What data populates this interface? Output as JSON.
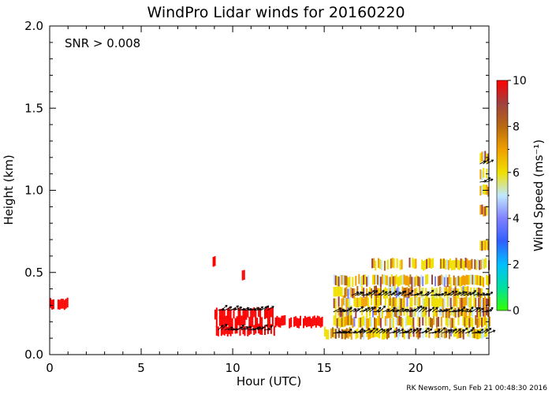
{
  "chart_data": {
    "type": "heatmap",
    "title": "WindPro Lidar winds for 20160220",
    "xlabel": "Hour (UTC)",
    "ylabel": "Height (km)",
    "xlim": [
      0,
      24
    ],
    "ylim": [
      0,
      2.0
    ],
    "xticks": [
      "0",
      "5",
      "10",
      "15",
      "20"
    ],
    "xtick_values": [
      0,
      5,
      10,
      15,
      20
    ],
    "yticks": [
      "0.0",
      "0.5",
      "1.0",
      "1.5",
      "2.0"
    ],
    "ytick_values": [
      0.0,
      0.5,
      1.0,
      1.5,
      2.0
    ],
    "annotation": "SNR > 0.008",
    "colorbar": {
      "label": "Wind Speed (ms⁻¹)",
      "range": [
        0,
        10
      ],
      "ticks": [
        "0",
        "2",
        "4",
        "6",
        "8",
        "10"
      ],
      "tick_values": [
        0,
        2,
        4,
        6,
        8,
        10
      ],
      "colors": [
        "#33ff00",
        "#00e0a0",
        "#00c0ff",
        "#3060ff",
        "#8080ff",
        "#c0e8ff",
        "#f0e000",
        "#f0a000",
        "#b86a10",
        "#a04040",
        "#ff0000"
      ]
    },
    "wind_speed_layers": [
      {
        "hours": [
          0.0,
          1.0
        ],
        "height": 0.31,
        "speed": 10
      },
      {
        "hours": [
          9.0,
          12.3
        ],
        "height": 0.15,
        "speed": 10
      },
      {
        "hours": [
          9.0,
          12.3
        ],
        "height": 0.2,
        "speed": 10
      },
      {
        "hours": [
          9.0,
          12.3
        ],
        "height": 0.25,
        "speed": 10
      },
      {
        "hours": [
          12.3,
          15.0
        ],
        "height": 0.2,
        "speed": 10
      },
      {
        "hours": [
          8.9,
          9.0
        ],
        "height": 0.57,
        "speed": 10
      },
      {
        "hours": [
          10.5,
          10.6
        ],
        "height": 0.48,
        "speed": 10
      },
      {
        "hours": [
          15.0,
          24.0
        ],
        "height": 0.13,
        "speed": 6
      },
      {
        "hours": [
          15.5,
          24.0
        ],
        "height": 0.2,
        "speed": 6
      },
      {
        "hours": [
          15.5,
          24.0
        ],
        "height": 0.26,
        "speed": 6
      },
      {
        "hours": [
          15.5,
          24.0
        ],
        "height": 0.32,
        "speed": 6
      },
      {
        "hours": [
          15.5,
          24.0
        ],
        "height": 0.38,
        "speed": 6
      },
      {
        "hours": [
          15.5,
          24.0
        ],
        "height": 0.45,
        "speed": 6
      },
      {
        "hours": [
          17.5,
          24.0
        ],
        "height": 0.55,
        "speed": 6
      },
      {
        "hours": [
          23.5,
          24.0
        ],
        "height": 0.66,
        "speed": 6
      },
      {
        "hours": [
          23.5,
          24.0
        ],
        "height": 0.88,
        "speed": 5
      },
      {
        "hours": [
          23.5,
          24.0
        ],
        "height": 1.0,
        "speed": 6
      },
      {
        "hours": [
          23.5,
          24.0
        ],
        "height": 1.1,
        "speed": 8
      },
      {
        "hours": [
          23.5,
          24.0
        ],
        "height": 1.2,
        "speed": 8
      }
    ],
    "wind_vector_rows": [
      {
        "hours": [
          9.2,
          12.0
        ],
        "height": 0.15
      },
      {
        "hours": [
          9.2,
          12.0
        ],
        "height": 0.27
      },
      {
        "hours": [
          15.5,
          24.0
        ],
        "height": 0.13
      },
      {
        "hours": [
          15.5,
          24.0
        ],
        "height": 0.26
      },
      {
        "hours": [
          16.5,
          24.0
        ],
        "height": 0.36
      },
      {
        "hours": [
          23.5,
          24.0
        ],
        "height": 1.05
      },
      {
        "hours": [
          23.5,
          24.0
        ],
        "height": 1.16
      }
    ]
  },
  "footer": "RK Newsom, Sun Feb 21 00:48:30 2016"
}
